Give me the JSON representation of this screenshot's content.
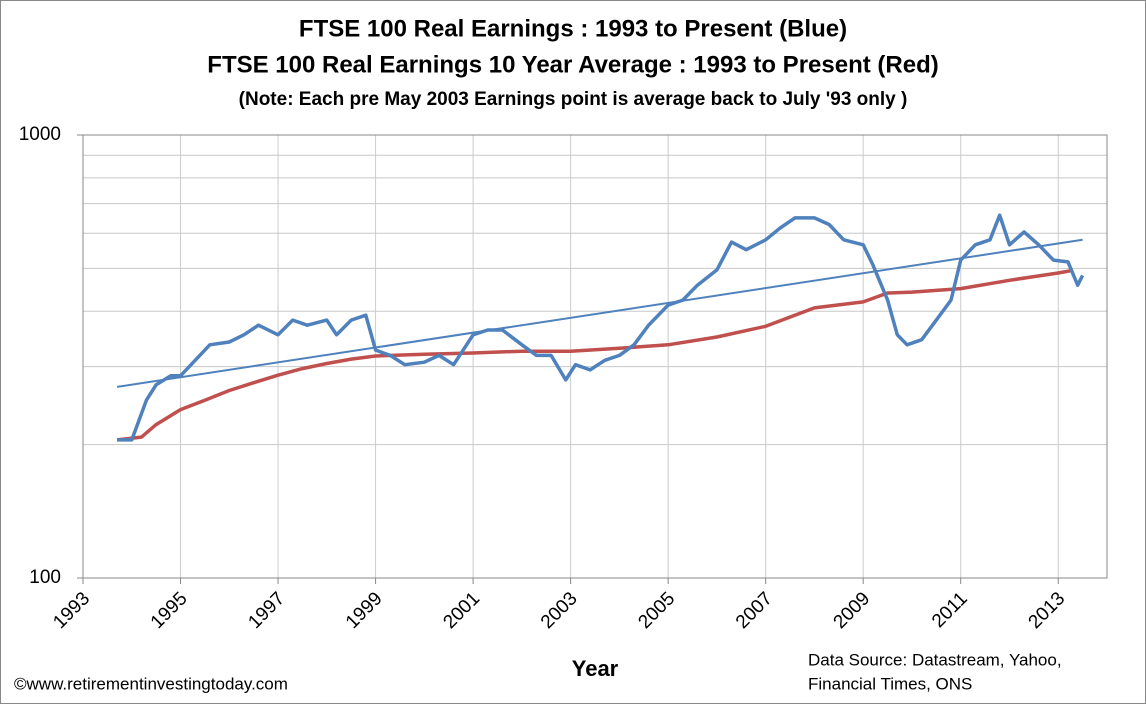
{
  "chart_data": {
    "type": "line",
    "title": "FTSE 100 Real Earnings : 1993 to Present (Blue)",
    "subtitle": "FTSE 100 Real Earnings 10 Year Average : 1993 to Present (Red)",
    "note": "(Note:  Each pre May 2003 Earnings point is average  back to July '93 only )",
    "x_label": "Year",
    "source": [
      "Data Source: Datastream,  Yahoo,",
      "Financial Times, ONS"
    ],
    "credit": "©www.retirementinvestingtoday.com",
    "log_y": true,
    "grid": true,
    "xlim": [
      1993,
      2014
    ],
    "xticks": [
      1993,
      1995,
      1997,
      1999,
      2001,
      2003,
      2005,
      2007,
      2009,
      2011,
      2013
    ],
    "ylim": [
      100,
      1000
    ],
    "yticks": [
      100,
      1000
    ],
    "series": [
      {
        "color": "#4f81bd",
        "width": 3.5,
        "x": [
          1993.7,
          1994.0,
          1994.3,
          1994.5,
          1994.8,
          1995.0,
          1995.3,
          1995.6,
          1996.0,
          1996.3,
          1996.6,
          1997.0,
          1997.3,
          1997.6,
          1998.0,
          1998.2,
          1998.5,
          1998.8,
          1999.0,
          1999.3,
          1999.6,
          2000.0,
          2000.3,
          2000.6,
          2001.0,
          2001.3,
          2001.6,
          2002.0,
          2002.3,
          2002.6,
          2002.9,
          2003.1,
          2003.4,
          2003.7,
          2004.0,
          2004.3,
          2004.6,
          2005.0,
          2005.3,
          2005.6,
          2006.0,
          2006.3,
          2006.6,
          2007.0,
          2007.3,
          2007.6,
          2008.0,
          2008.3,
          2008.6,
          2009.0,
          2009.2,
          2009.5,
          2009.7,
          2009.9,
          2010.2,
          2010.5,
          2010.8,
          2011.0,
          2011.3,
          2011.6,
          2011.8,
          2012.0,
          2012.3,
          2012.6,
          2012.9,
          2013.2,
          2013.4,
          2013.5
        ],
        "values": [
          205,
          205,
          252,
          273,
          286,
          286,
          310,
          336,
          341,
          354,
          372,
          354,
          382,
          372,
          382,
          354,
          382,
          392,
          327,
          318,
          303,
          307,
          318,
          303,
          354,
          363,
          363,
          336,
          318,
          318,
          280,
          303,
          295,
          310,
          318,
          336,
          372,
          413,
          424,
          458,
          496,
          573,
          551,
          580,
          617,
          650,
          650,
          628,
          580,
          565,
          509,
          424,
          354,
          336,
          345,
          382,
          424,
          522,
          565,
          580,
          659,
          565,
          604,
          565,
          522,
          517,
          458,
          482
        ]
      },
      {
        "color": "#c0504d",
        "width": 3.5,
        "x": [
          1993.7,
          1994.2,
          1994.5,
          1995.0,
          1995.5,
          1996.0,
          1996.5,
          1997.0,
          1997.5,
          1998.0,
          1998.5,
          1999.0,
          2000.0,
          2001.0,
          2002.0,
          2003.0,
          2004.0,
          2005.0,
          2006.0,
          2007.0,
          2008.0,
          2009.0,
          2009.5,
          2010.0,
          2011.0,
          2012.0,
          2013.0,
          2013.3
        ],
        "values": [
          205,
          208,
          222,
          240,
          252,
          265,
          276,
          287,
          297,
          305,
          312,
          317,
          320,
          322,
          325,
          325,
          330,
          336,
          350,
          370,
          407,
          420,
          440,
          442,
          450,
          470,
          488,
          495
        ]
      },
      {
        "color": "#4f81bd",
        "width": 2,
        "x": [
          1993.7,
          2013.5
        ],
        "values": [
          270,
          580
        ]
      }
    ]
  }
}
